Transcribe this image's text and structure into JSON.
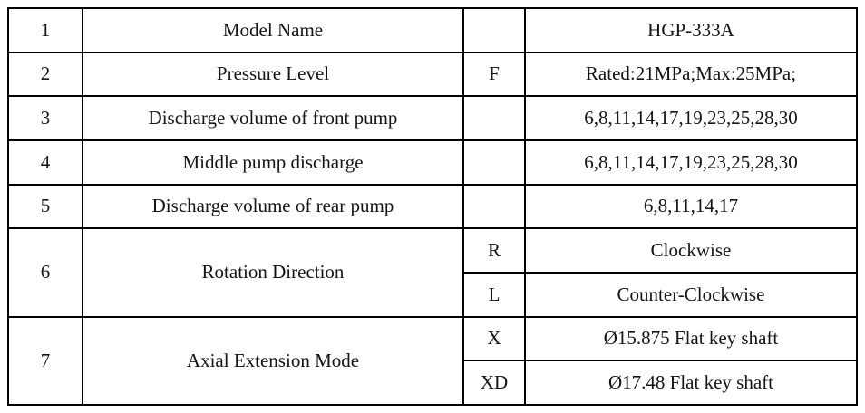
{
  "table": {
    "rows": [
      {
        "num": "1",
        "name": "Model Name",
        "code": "",
        "value": "HGP-333A"
      },
      {
        "num": "2",
        "name": "Pressure Level",
        "code": "F",
        "value": "Rated:21MPa;Max:25MPa;"
      },
      {
        "num": "3",
        "name": "Discharge volume of front pump",
        "code": "",
        "value": "6,8,11,14,17,19,23,25,28,30"
      },
      {
        "num": "4",
        "name": "Middle pump discharge",
        "code": "",
        "value": "6,8,11,14,17,19,23,25,28,30"
      },
      {
        "num": "5",
        "name": "Discharge volume of rear pump",
        "code": "",
        "value": "6,8,11,14,17"
      },
      {
        "num": "6",
        "name": "Rotation Direction",
        "subrows": [
          {
            "code": "R",
            "value": "Clockwise"
          },
          {
            "code": "L",
            "value": "Counter-Clockwise"
          }
        ]
      },
      {
        "num": "7",
        "name": "Axial Extension Mode",
        "subrows": [
          {
            "code": "X",
            "value": "Ø15.875 Flat key shaft"
          },
          {
            "code": "XD",
            "value": "Ø17.48 Flat key shaft"
          }
        ]
      }
    ],
    "border_color": "#000000",
    "background_color": "#ffffff"
  }
}
